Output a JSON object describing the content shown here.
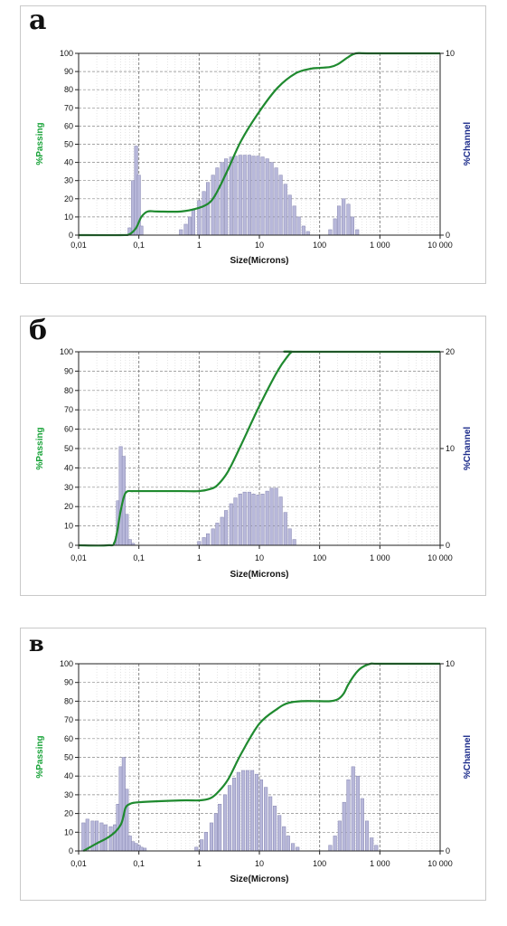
{
  "panels": [
    {
      "letter": "а"
    },
    {
      "letter": "б"
    },
    {
      "letter": "в"
    }
  ],
  "colors": {
    "curve": "#1f8a2f",
    "bar_fill": "#b8b8da",
    "bar_stroke": "#8585b0",
    "grid": "#b0b0b0",
    "left_label": "#1aa33a",
    "right_label": "#1a2a8a"
  },
  "chart_data": [
    {
      "type": "bar",
      "xlabel": "Size(Microns)",
      "ylabel_left": "%Passing",
      "ylabel_right": "%Channel",
      "x_scale": "log",
      "xlim": [
        0.01,
        10000
      ],
      "ylim_left": [
        0,
        100
      ],
      "ylim_right": [
        0,
        10
      ],
      "x_tick_labels": [
        "0,01",
        "0,1",
        "1",
        "10",
        "100",
        "1 000",
        "10 000"
      ],
      "y_left_tick_labels": [
        "0",
        "10",
        "20",
        "30",
        "40",
        "50",
        "60",
        "70",
        "80",
        "90",
        "100"
      ],
      "y_right_tick_labels": [
        "0",
        "10"
      ],
      "grid": true,
      "channel_bars": {
        "sizes": [
          0.07,
          0.08,
          0.09,
          0.1,
          0.11,
          0.5,
          0.6,
          0.7,
          0.8,
          1,
          1.2,
          1.4,
          1.7,
          2,
          2.4,
          2.8,
          3.4,
          4,
          4.8,
          5.7,
          6.8,
          8,
          9.5,
          11.3,
          13.5,
          16,
          19,
          22.6,
          27,
          32,
          38,
          45,
          54,
          64,
          150,
          180,
          210,
          250,
          300,
          350,
          420
        ],
        "values": [
          0.4,
          3,
          4.9,
          3.3,
          0.5,
          0.3,
          0.6,
          1,
          1.4,
          1.9,
          2.4,
          2.9,
          3.3,
          3.7,
          4,
          4.2,
          4.3,
          4.35,
          4.4,
          4.4,
          4.4,
          4.35,
          4.35,
          4.3,
          4.2,
          4,
          3.7,
          3.3,
          2.8,
          2.2,
          1.6,
          1,
          0.5,
          0.2,
          0.3,
          0.9,
          1.6,
          2,
          1.7,
          1,
          0.3
        ]
      },
      "passing_curve": {
        "sizes": [
          0.01,
          0.05,
          0.07,
          0.09,
          0.11,
          0.14,
          0.2,
          0.5,
          1,
          1.5,
          2,
          3,
          5,
          10,
          20,
          40,
          70,
          100,
          150,
          200,
          300,
          400,
          700,
          10000
        ],
        "values": [
          0,
          0,
          0.5,
          4,
          10,
          13,
          13,
          13,
          15,
          18,
          24,
          36,
          52,
          68,
          81,
          89,
          91.5,
          92,
          92.5,
          94,
          98,
          100,
          100,
          100
        ]
      }
    },
    {
      "type": "bar",
      "xlabel": "Size(Microns)",
      "ylabel_left": "%Passing",
      "ylabel_right": "%Channel",
      "x_scale": "log",
      "xlim": [
        0.01,
        10000
      ],
      "ylim_left": [
        0,
        100
      ],
      "ylim_right": [
        0,
        20
      ],
      "x_tick_labels": [
        "0,01",
        "0,1",
        "1",
        "10",
        "100",
        "1 000",
        "10 000"
      ],
      "y_left_tick_labels": [
        "0",
        "10",
        "20",
        "30",
        "40",
        "50",
        "60",
        "70",
        "80",
        "90",
        "100"
      ],
      "y_right_tick_labels": [
        "0",
        "10",
        "20"
      ],
      "grid": true,
      "channel_bars": {
        "sizes": [
          0.04,
          0.045,
          0.05,
          0.056,
          0.063,
          0.071,
          0.08,
          1,
          1.2,
          1.4,
          1.7,
          2,
          2.4,
          2.8,
          3.4,
          4,
          4.8,
          5.7,
          6.8,
          8,
          9.5,
          11.3,
          13.5,
          16,
          19,
          22.6,
          27,
          32,
          38
        ],
        "values": [
          0.3,
          4.6,
          10.2,
          9.2,
          3.2,
          0.6,
          0.2,
          0.4,
          0.8,
          1.2,
          1.7,
          2.3,
          2.9,
          3.6,
          4.3,
          4.9,
          5.3,
          5.5,
          5.5,
          5.3,
          5.2,
          5.3,
          5.6,
          5.9,
          5.9,
          5,
          3.4,
          1.7,
          0.6
        ]
      },
      "passing_curve": {
        "sizes": [
          0.01,
          0.03,
          0.04,
          0.05,
          0.06,
          0.08,
          0.1,
          0.5,
          1,
          1.5,
          2,
          3,
          5,
          10,
          20,
          30,
          35,
          40,
          10000
        ],
        "values": [
          0,
          0,
          2,
          18,
          27,
          28,
          28,
          28,
          28,
          29,
          31,
          38,
          52,
          72,
          90,
          98,
          100,
          100,
          100
        ]
      }
    },
    {
      "type": "bar",
      "xlabel": "Size(Microns)",
      "ylabel_left": "%Passing",
      "ylabel_right": "%Channel",
      "x_scale": "log",
      "xlim": [
        0.01,
        10000
      ],
      "ylim_left": [
        0,
        100
      ],
      "ylim_right": [
        0,
        10
      ],
      "x_tick_labels": [
        "0,01",
        "0,1",
        "1",
        "10",
        "100",
        "1 000",
        "10 000"
      ],
      "y_left_tick_labels": [
        "0",
        "10",
        "20",
        "30",
        "40",
        "50",
        "60",
        "70",
        "80",
        "90",
        "100"
      ],
      "y_right_tick_labels": [
        "0",
        "10"
      ],
      "grid": true,
      "channel_bars": {
        "sizes": [
          0.012,
          0.014,
          0.017,
          0.02,
          0.024,
          0.028,
          0.034,
          0.04,
          0.045,
          0.05,
          0.056,
          0.063,
          0.071,
          0.08,
          0.09,
          0.1,
          0.11,
          0.125,
          0.9,
          1.1,
          1.3,
          1.6,
          1.9,
          2.2,
          2.7,
          3.2,
          3.8,
          4.5,
          5.4,
          6.4,
          7.6,
          9,
          10.7,
          12.8,
          15.2,
          18,
          21.5,
          25.6,
          30,
          36,
          43,
          150,
          180,
          215,
          255,
          300,
          360,
          430,
          510,
          610,
          730,
          870
        ],
        "values": [
          1.5,
          1.7,
          1.6,
          1.6,
          1.5,
          1.4,
          1.3,
          1.4,
          2.5,
          4.5,
          5,
          3.3,
          0.8,
          0.5,
          0.4,
          0.3,
          0.2,
          0.15,
          0.2,
          0.6,
          1,
          1.5,
          2,
          2.5,
          3,
          3.5,
          3.9,
          4.2,
          4.3,
          4.3,
          4.3,
          4.1,
          3.8,
          3.4,
          2.9,
          2.4,
          1.9,
          1.3,
          0.8,
          0.4,
          0.2,
          0.3,
          0.8,
          1.6,
          2.6,
          3.8,
          4.5,
          4,
          2.8,
          1.6,
          0.7,
          0.3
        ]
      },
      "passing_curve": {
        "sizes": [
          0.012,
          0.02,
          0.03,
          0.04,
          0.05,
          0.055,
          0.06,
          0.07,
          0.1,
          0.5,
          1,
          1.5,
          2,
          3,
          5,
          10,
          20,
          30,
          50,
          100,
          150,
          200,
          250,
          300,
          400,
          500,
          700,
          1000,
          10000
        ],
        "values": [
          0,
          4,
          7,
          10,
          14,
          18,
          23,
          25,
          26,
          27,
          27,
          28,
          31,
          38,
          52,
          68,
          76,
          79,
          80,
          80,
          80,
          81,
          84,
          89,
          95,
          98,
          100,
          100,
          100
        ]
      }
    }
  ]
}
